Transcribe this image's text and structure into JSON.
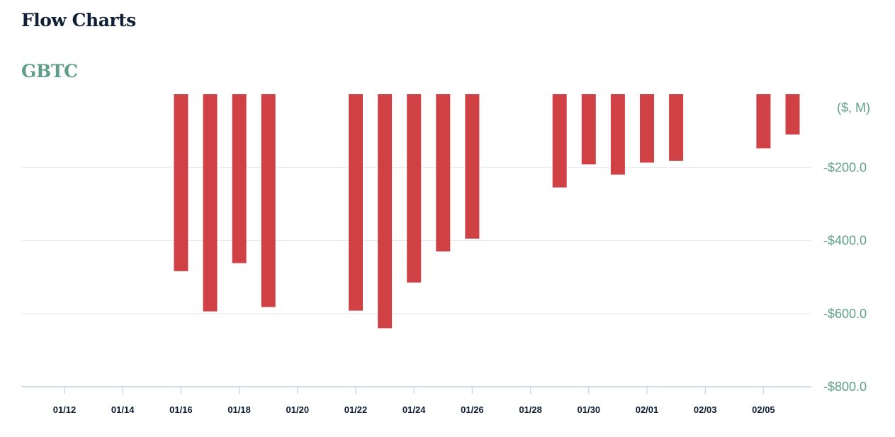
{
  "header": {
    "title": "Flow Charts"
  },
  "chart_data": {
    "type": "bar",
    "title": "GBTC",
    "unit_label": "($, M)",
    "color": "#d04146",
    "grid": true,
    "ylim": [
      -800,
      0
    ],
    "y_ticks": [
      -200,
      -400,
      -600,
      -800
    ],
    "y_tick_labels": [
      "-$200.0",
      "-$400.0",
      "-$600.0",
      "-$800.0"
    ],
    "x_tick_labels": [
      "01/12",
      "01/14",
      "01/16",
      "01/18",
      "01/20",
      "01/22",
      "01/24",
      "01/26",
      "01/28",
      "01/30",
      "02/01",
      "02/03",
      "02/05"
    ],
    "categories": [
      "01/16",
      "01/17",
      "01/18",
      "01/19",
      "01/22",
      "01/23",
      "01/24",
      "01/25",
      "01/26",
      "01/29",
      "01/30",
      "01/31",
      "02/01",
      "02/02",
      "02/05",
      "02/06"
    ],
    "values": [
      -484,
      -594,
      -462,
      -582,
      -592,
      -640,
      -515,
      -430,
      -395,
      -255,
      -192,
      -220,
      -187,
      -182,
      -148,
      -110
    ]
  }
}
